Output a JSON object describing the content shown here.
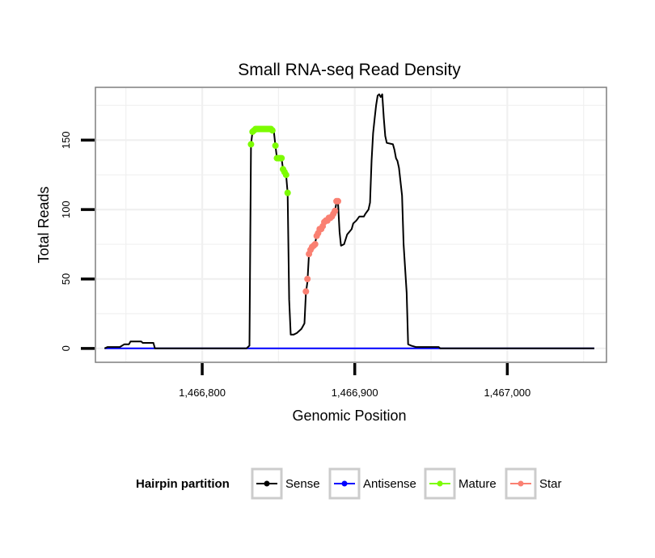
{
  "chart_data": {
    "type": "line",
    "title": "Small RNA-seq Read Density",
    "xlabel": "Genomic Position",
    "ylabel": "Total Reads",
    "xlim": [
      1466730,
      1467065
    ],
    "ylim": [
      -10,
      188
    ],
    "x_ticks": [
      {
        "value": 1466800,
        "label": "1,466,800"
      },
      {
        "value": 1466900,
        "label": "1,466,900"
      },
      {
        "value": 1467000,
        "label": "1,467,000"
      }
    ],
    "y_ticks": [
      {
        "value": 0,
        "label": "0"
      },
      {
        "value": 50,
        "label": "50"
      },
      {
        "value": 100,
        "label": "100"
      },
      {
        "value": 150,
        "label": "150"
      }
    ],
    "grid": true,
    "legend": {
      "title": "Hairpin partition",
      "position": "bottom",
      "entries": [
        {
          "name": "Sense",
          "color": "#000000"
        },
        {
          "name": "Antisense",
          "color": "#0000ff"
        },
        {
          "name": "Mature",
          "color": "#7cfc00"
        },
        {
          "name": "Star",
          "color": "#fa8072"
        }
      ]
    },
    "series": [
      {
        "name": "Sense",
        "color": "#000000",
        "markers": false,
        "points": [
          [
            1466736,
            0
          ],
          [
            1466738,
            1
          ],
          [
            1466746,
            1
          ],
          [
            1466749,
            3
          ],
          [
            1466752,
            3
          ],
          [
            1466753,
            5
          ],
          [
            1466760,
            5
          ],
          [
            1466761,
            4
          ],
          [
            1466768,
            4
          ],
          [
            1466769,
            0
          ],
          [
            1466829,
            0
          ],
          [
            1466831,
            2
          ],
          [
            1466832,
            147
          ],
          [
            1466833,
            156
          ],
          [
            1466835,
            157
          ],
          [
            1466840,
            158
          ],
          [
            1466846,
            157
          ],
          [
            1466847,
            156
          ],
          [
            1466848,
            146
          ],
          [
            1466849,
            137
          ],
          [
            1466852,
            137
          ],
          [
            1466853,
            129
          ],
          [
            1466854,
            127
          ],
          [
            1466855,
            125
          ],
          [
            1466856,
            112
          ],
          [
            1466857,
            35
          ],
          [
            1466858,
            10
          ],
          [
            1466860,
            10
          ],
          [
            1466862,
            11
          ],
          [
            1466865,
            14
          ],
          [
            1466866,
            16
          ],
          [
            1466867,
            18
          ],
          [
            1466868,
            40
          ],
          [
            1466869,
            48
          ],
          [
            1466870,
            68
          ],
          [
            1466871,
            71
          ],
          [
            1466872,
            73
          ],
          [
            1466873,
            74
          ],
          [
            1466874,
            76
          ],
          [
            1466875,
            81
          ],
          [
            1466876,
            83
          ],
          [
            1466877,
            85
          ],
          [
            1466879,
            88
          ],
          [
            1466880,
            90
          ],
          [
            1466882,
            92
          ],
          [
            1466884,
            94
          ],
          [
            1466886,
            96
          ],
          [
            1466887,
            99
          ],
          [
            1466888,
            105
          ],
          [
            1466889,
            105
          ],
          [
            1466890,
            84
          ],
          [
            1466891,
            74
          ],
          [
            1466893,
            75
          ],
          [
            1466895,
            82
          ],
          [
            1466898,
            86
          ],
          [
            1466899,
            90
          ],
          [
            1466901,
            92
          ],
          [
            1466903,
            95
          ],
          [
            1466906,
            95
          ],
          [
            1466907,
            97
          ],
          [
            1466909,
            100
          ],
          [
            1466910,
            105
          ],
          [
            1466911,
            135
          ],
          [
            1466912,
            155
          ],
          [
            1466913,
            165
          ],
          [
            1466914,
            175
          ],
          [
            1466915,
            182
          ],
          [
            1466916,
            183
          ],
          [
            1466917,
            181
          ],
          [
            1466918,
            183
          ],
          [
            1466919,
            166
          ],
          [
            1466920,
            153
          ],
          [
            1466921,
            148
          ],
          [
            1466925,
            147
          ],
          [
            1466926,
            143
          ],
          [
            1466927,
            137
          ],
          [
            1466928,
            135
          ],
          [
            1466929,
            130
          ],
          [
            1466931,
            110
          ],
          [
            1466932,
            75
          ],
          [
            1466934,
            40
          ],
          [
            1466935,
            3
          ],
          [
            1466937,
            2
          ],
          [
            1466940,
            1
          ],
          [
            1466955,
            1
          ],
          [
            1466956,
            0
          ],
          [
            1467057,
            0
          ]
        ]
      },
      {
        "name": "Antisense",
        "color": "#0000ff",
        "markers": false,
        "points": [
          [
            1466736,
            0
          ],
          [
            1467057,
            0
          ]
        ]
      },
      {
        "name": "Mature",
        "color": "#7cfc00",
        "markers": true,
        "points": [
          [
            1466832,
            147
          ],
          [
            1466833,
            156
          ],
          [
            1466834,
            157
          ],
          [
            1466835,
            158
          ],
          [
            1466836,
            158
          ],
          [
            1466837,
            158
          ],
          [
            1466838,
            158
          ],
          [
            1466839,
            158
          ],
          [
            1466840,
            158
          ],
          [
            1466841,
            158
          ],
          [
            1466842,
            158
          ],
          [
            1466843,
            158
          ],
          [
            1466844,
            158
          ],
          [
            1466845,
            158
          ],
          [
            1466846,
            157
          ],
          [
            1466848,
            146
          ],
          [
            1466849,
            137
          ],
          [
            1466850,
            137
          ],
          [
            1466851,
            137
          ],
          [
            1466852,
            137
          ],
          [
            1466853,
            129
          ],
          [
            1466854,
            127
          ],
          [
            1466855,
            125
          ],
          [
            1466856,
            112
          ]
        ]
      },
      {
        "name": "Star",
        "color": "#fa8072",
        "markers": true,
        "points": [
          [
            1466868,
            41
          ],
          [
            1466869,
            50
          ],
          [
            1466870,
            68
          ],
          [
            1466871,
            71
          ],
          [
            1466872,
            73
          ],
          [
            1466873,
            74
          ],
          [
            1466874,
            75
          ],
          [
            1466875,
            81
          ],
          [
            1466876,
            83
          ],
          [
            1466877,
            86
          ],
          [
            1466878,
            86
          ],
          [
            1466879,
            88
          ],
          [
            1466880,
            91
          ],
          [
            1466881,
            92
          ],
          [
            1466882,
            92
          ],
          [
            1466883,
            94
          ],
          [
            1466884,
            94
          ],
          [
            1466885,
            95
          ],
          [
            1466886,
            97
          ],
          [
            1466887,
            99
          ],
          [
            1466888,
            106
          ],
          [
            1466889,
            106
          ]
        ]
      }
    ]
  }
}
